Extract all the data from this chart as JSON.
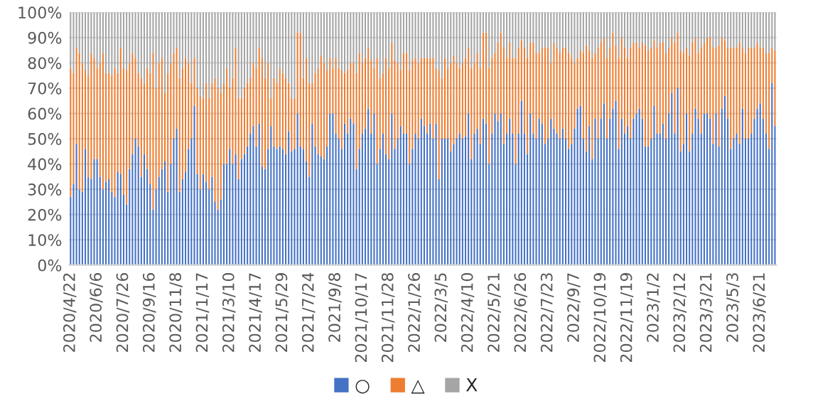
{
  "chart_data": {
    "type": "bar",
    "stacked": true,
    "grid": "y",
    "legend": "bottom",
    "ylim": [
      0,
      100
    ],
    "yticks": [
      {
        "value": 0,
        "label": "0%"
      },
      {
        "value": 10,
        "label": "10%"
      },
      {
        "value": 20,
        "label": "20%"
      },
      {
        "value": 30,
        "label": "30%"
      },
      {
        "value": 40,
        "label": "40%"
      },
      {
        "value": 50,
        "label": "50%"
      },
      {
        "value": 60,
        "label": "60%"
      },
      {
        "value": 70,
        "label": "70%"
      },
      {
        "value": 80,
        "label": "80%"
      },
      {
        "value": 90,
        "label": "90%"
      },
      {
        "value": 100,
        "label": "100%"
      }
    ],
    "categories": [
      "2020/4/22",
      null,
      null,
      null,
      null,
      null,
      null,
      null,
      null,
      "2020/6/6",
      null,
      null,
      null,
      null,
      null,
      null,
      null,
      null,
      "2020/7/26",
      null,
      null,
      null,
      null,
      null,
      null,
      null,
      null,
      "2020/9/16",
      null,
      null,
      null,
      null,
      null,
      null,
      null,
      null,
      "2020/11/8",
      null,
      null,
      null,
      null,
      null,
      null,
      null,
      null,
      "2021/1/17",
      null,
      null,
      null,
      null,
      null,
      null,
      null,
      null,
      "2021/3/10",
      null,
      null,
      null,
      null,
      null,
      null,
      null,
      null,
      "2021/4/17",
      null,
      null,
      null,
      null,
      null,
      null,
      null,
      null,
      "2021/5/29",
      null,
      null,
      null,
      null,
      null,
      null,
      null,
      null,
      "2021/7/24",
      null,
      null,
      null,
      null,
      null,
      null,
      null,
      null,
      "2021/9/8",
      null,
      null,
      null,
      null,
      null,
      null,
      null,
      null,
      "2021/10/17",
      null,
      null,
      null,
      null,
      null,
      null,
      null,
      null,
      "2021/11/28",
      null,
      null,
      null,
      null,
      null,
      null,
      null,
      null,
      "2022/1/26",
      null,
      null,
      null,
      null,
      null,
      null,
      null,
      null,
      "2022/3/5",
      null,
      null,
      null,
      null,
      null,
      null,
      null,
      null,
      "2022/4/10",
      null,
      null,
      null,
      null,
      null,
      null,
      null,
      null,
      "2022/5/21",
      null,
      null,
      null,
      null,
      null,
      null,
      null,
      null,
      "2022/6/26",
      null,
      null,
      null,
      null,
      null,
      null,
      null,
      null,
      "2022/7/23",
      null,
      null,
      null,
      null,
      null,
      null,
      null,
      null,
      "2022/9/7",
      null,
      null,
      null,
      null,
      null,
      null,
      null,
      null,
      "2022/10/19",
      null,
      null,
      null,
      null,
      null,
      null,
      null,
      null,
      "2022/11/19",
      null,
      null,
      null,
      null,
      null,
      null,
      null,
      null,
      "2023/1/2",
      null,
      null,
      null,
      null,
      null,
      null,
      null,
      null,
      "2023/2/12",
      null,
      null,
      null,
      null,
      null,
      null,
      null,
      null,
      "2023/3/21",
      null,
      null,
      null,
      null,
      null,
      null,
      null,
      null,
      "2023/5/3",
      null,
      null,
      null,
      null,
      null,
      null,
      null,
      null,
      "2023/6/21",
      null,
      null,
      null,
      null,
      null
    ],
    "series": [
      {
        "name": "○",
        "color": "#4472c4",
        "values": [
          27,
          32,
          48,
          30,
          29,
          46,
          35,
          34,
          42,
          42,
          35,
          30,
          33,
          34,
          29,
          27,
          37,
          36,
          28,
          24,
          38,
          44,
          50,
          47,
          35,
          44,
          38,
          32,
          22,
          30,
          35,
          38,
          41,
          29,
          40,
          50,
          54,
          29,
          34,
          37,
          46,
          50,
          63,
          36,
          30,
          36,
          33,
          30,
          35,
          25,
          22,
          26,
          40,
          40,
          46,
          40,
          44,
          34,
          42,
          44,
          47,
          52,
          55,
          47,
          56,
          39,
          38,
          46,
          55,
          47,
          46,
          47,
          46,
          44,
          53,
          45,
          46,
          60,
          47,
          46,
          41,
          35,
          56,
          47,
          44,
          43,
          42,
          47,
          60,
          60,
          52,
          50,
          46,
          56,
          52,
          58,
          56,
          38,
          46,
          52,
          54,
          62,
          52,
          60,
          40,
          46,
          52,
          44,
          42,
          60,
          46,
          50,
          55,
          52,
          52,
          40,
          46,
          52,
          50,
          58,
          55,
          52,
          56,
          50,
          56,
          34,
          50,
          50,
          50,
          45,
          48,
          50,
          52,
          50,
          51,
          60,
          42,
          52,
          54,
          48,
          58,
          56,
          40,
          52,
          60,
          57,
          60,
          48,
          52,
          58,
          52,
          40,
          52,
          65,
          52,
          44,
          60,
          52,
          50,
          58,
          56,
          48,
          50,
          58,
          54,
          52,
          50,
          54,
          50,
          46,
          48,
          54,
          62,
          63,
          50,
          45,
          55,
          42,
          58,
          50,
          58,
          64,
          50,
          58,
          62,
          65,
          46,
          58,
          52,
          55,
          50,
          58,
          60,
          62,
          58,
          47,
          47,
          50,
          63,
          52,
          52,
          56,
          50,
          60,
          68,
          52,
          70,
          45,
          48,
          60,
          45,
          52,
          62,
          58,
          52,
          60,
          60,
          58,
          48,
          60,
          47,
          62,
          67,
          58,
          46,
          50,
          52,
          48,
          62,
          50,
          50,
          52,
          58,
          62,
          64,
          58,
          52,
          46,
          72,
          55
        ]
      },
      {
        "name": "△",
        "color": "#ed7d31",
        "values": [
          51,
          44,
          38,
          54,
          51,
          31,
          40,
          50,
          40,
          36,
          45,
          54,
          43,
          42,
          46,
          51,
          39,
          50,
          50,
          53,
          42,
          40,
          32,
          29,
          39,
          28,
          40,
          44,
          62,
          40,
          45,
          44,
          27,
          47,
          40,
          34,
          32,
          45,
          44,
          45,
          34,
          22,
          19,
          34,
          37,
          30,
          39,
          36,
          37,
          49,
          48,
          42,
          32,
          38,
          24,
          34,
          42,
          32,
          24,
          26,
          25,
          22,
          25,
          31,
          30,
          43,
          36,
          34,
          11,
          27,
          26,
          31,
          30,
          30,
          19,
          21,
          20,
          32,
          45,
          28,
          41,
          37,
          16,
          29,
          34,
          40,
          38,
          30,
          22,
          18,
          30,
          28,
          31,
          20,
          25,
          22,
          24,
          38,
          38,
          28,
          28,
          24,
          29,
          18,
          42,
          28,
          24,
          38,
          36,
          28,
          35,
          30,
          22,
          32,
          32,
          37,
          35,
          30,
          30,
          24,
          27,
          30,
          26,
          32,
          22,
          43,
          24,
          32,
          28,
          35,
          35,
          30,
          26,
          30,
          31,
          26,
          36,
          28,
          30,
          30,
          34,
          36,
          38,
          30,
          24,
          31,
          32,
          38,
          30,
          30,
          30,
          42,
          34,
          24,
          34,
          38,
          28,
          36,
          34,
          26,
          30,
          38,
          36,
          22,
          34,
          34,
          34,
          32,
          36,
          38,
          34,
          26,
          20,
          22,
          34,
          42,
          30,
          40,
          26,
          36,
          30,
          26,
          32,
          28,
          30,
          22,
          36,
          32,
          34,
          27,
          36,
          30,
          28,
          24,
          30,
          40,
          38,
          36,
          26,
          34,
          36,
          32,
          34,
          26,
          22,
          36,
          22,
          40,
          36,
          26,
          38,
          36,
          28,
          26,
          34,
          28,
          30,
          32,
          38,
          26,
          40,
          28,
          22,
          28,
          40,
          36,
          34,
          40,
          24,
          34,
          36,
          34,
          28,
          26,
          22,
          28,
          32,
          38,
          14,
          30
        ]
      },
      {
        "name": "X",
        "color": "#a5a5a5",
        "values": [
          22,
          24,
          14,
          16,
          20,
          23,
          25,
          16,
          18,
          22,
          20,
          16,
          24,
          24,
          25,
          22,
          24,
          14,
          22,
          23,
          20,
          16,
          18,
          24,
          26,
          28,
          22,
          24,
          16,
          30,
          20,
          18,
          32,
          24,
          20,
          16,
          14,
          26,
          22,
          18,
          20,
          28,
          18,
          30,
          33,
          34,
          28,
          34,
          28,
          26,
          30,
          32,
          28,
          22,
          30,
          26,
          14,
          34,
          34,
          30,
          28,
          26,
          20,
          22,
          14,
          18,
          26,
          20,
          34,
          26,
          28,
          22,
          24,
          26,
          28,
          34,
          34,
          8,
          8,
          26,
          18,
          28,
          28,
          24,
          22,
          17,
          20,
          23,
          18,
          22,
          18,
          22,
          23,
          24,
          23,
          20,
          20,
          24,
          16,
          20,
          18,
          14,
          19,
          22,
          18,
          26,
          24,
          18,
          22,
          12,
          19,
          20,
          23,
          16,
          16,
          23,
          19,
          18,
          20,
          18,
          18,
          18,
          18,
          18,
          22,
          23,
          26,
          18,
          22,
          20,
          17,
          20,
          22,
          20,
          18,
          14,
          22,
          20,
          16,
          22,
          8,
          8,
          22,
          18,
          16,
          12,
          8,
          14,
          18,
          12,
          18,
          18,
          14,
          11,
          14,
          18,
          12,
          12,
          16,
          16,
          14,
          14,
          14,
          20,
          12,
          14,
          16,
          14,
          14,
          16,
          18,
          20,
          18,
          15,
          16,
          13,
          15,
          18,
          16,
          14,
          12,
          10,
          18,
          14,
          8,
          13,
          18,
          10,
          14,
          18,
          14,
          12,
          12,
          14,
          12,
          13,
          15,
          14,
          11,
          14,
          12,
          12,
          16,
          14,
          10,
          12,
          8,
          15,
          16,
          14,
          17,
          12,
          10,
          16,
          14,
          12,
          10,
          10,
          14,
          14,
          13,
          10,
          11,
          14,
          14,
          14,
          14,
          12,
          14,
          16,
          14,
          14,
          14,
          12,
          14,
          14,
          16,
          16,
          14,
          15
        ]
      }
    ]
  }
}
